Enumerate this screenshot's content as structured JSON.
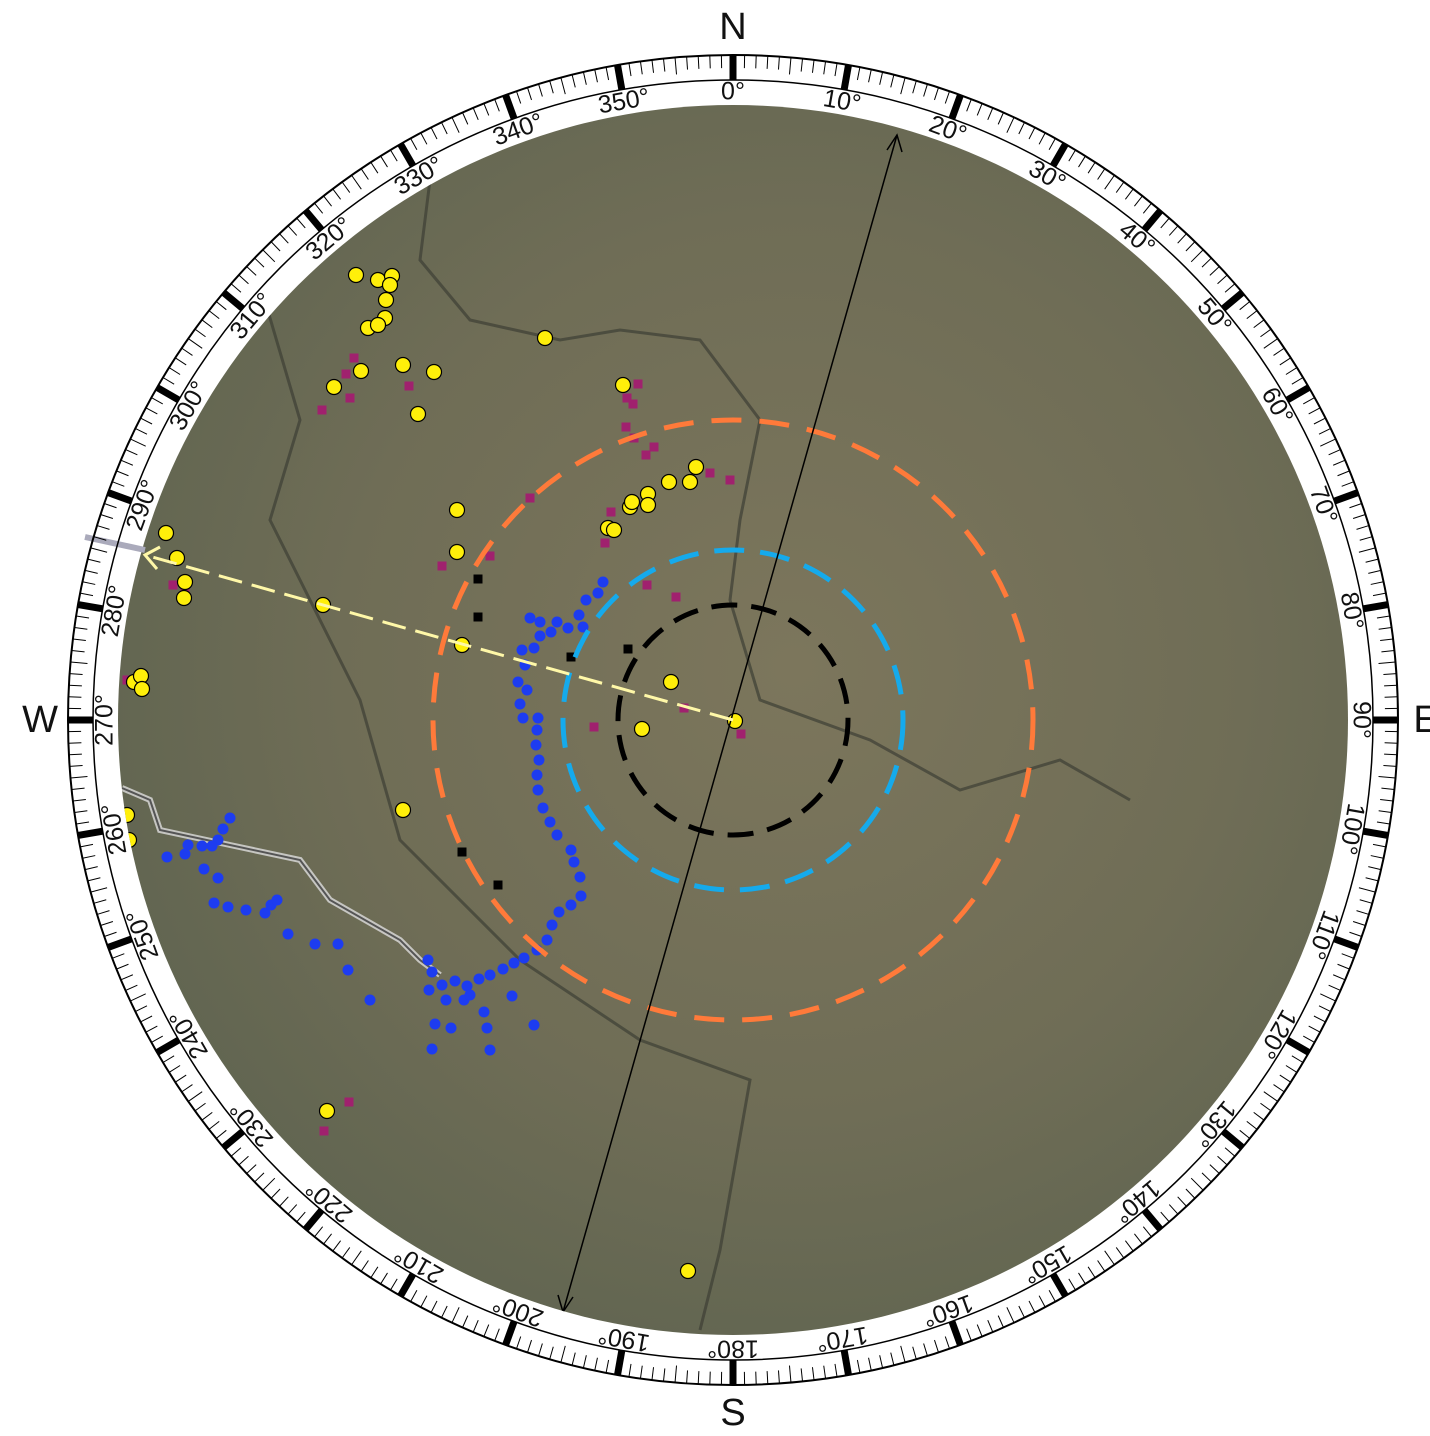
{
  "compass": {
    "cardinals": [
      "N",
      "E",
      "S",
      "W"
    ],
    "degree_labels": [
      "0°",
      "10°",
      "20°",
      "30°",
      "40°",
      "50°",
      "60°",
      "70°",
      "80°",
      "90°",
      "100°",
      "110°",
      "120°",
      "130°",
      "140°",
      "150°",
      "160°",
      "170°",
      "180°",
      "190°",
      "200°",
      "210°",
      "220°",
      "230°",
      "240°",
      "250°",
      "260°",
      "270°",
      "280°",
      "290°",
      "300°",
      "310°",
      "320°",
      "330°",
      "340°",
      "350°"
    ]
  }
}
